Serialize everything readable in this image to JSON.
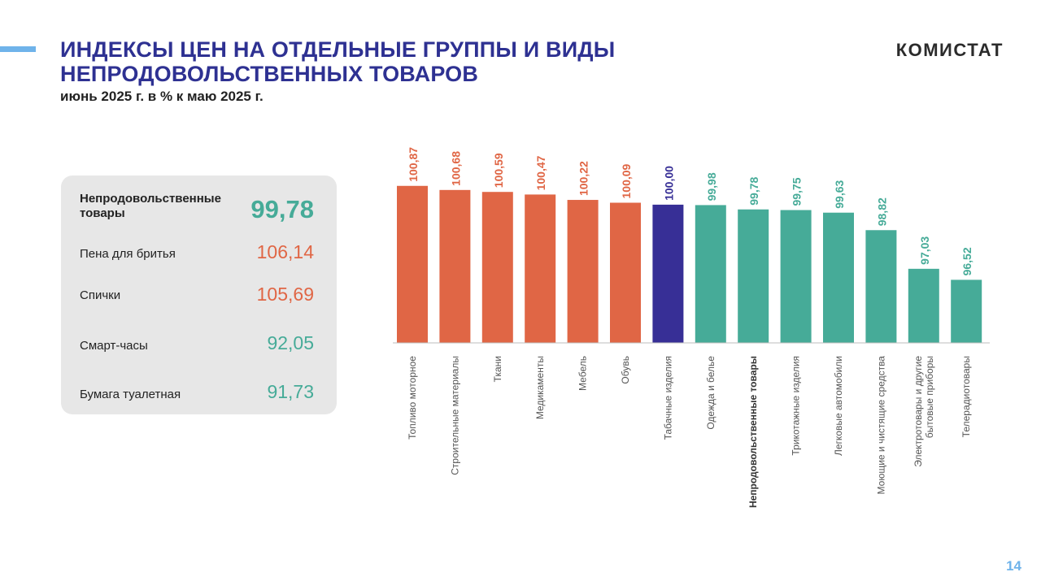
{
  "header": {
    "title_line1": "ИНДЕКСЫ ЦЕН НА ОТДЕЛЬНЫЕ  ГРУППЫ И ВИДЫ",
    "title_line2": "НЕПРОДОВОЛЬСТВЕННЫХ  ТОВАРОВ",
    "subtitle": "июнь 2025 г. в % к маю 2025 г.",
    "brand": "КОМИСТАТ"
  },
  "page_number": "14",
  "colors": {
    "title": "#2e3192",
    "increase": "#e06645",
    "neutral": "#372f96",
    "decrease": "#46ab98",
    "panel_bg": "#e7e7e7",
    "accent": "#6fb3ea"
  },
  "summary": [
    {
      "label": "Непродовольственные товары",
      "value": "99,78",
      "color": "#46ab98",
      "emphasis": true
    },
    {
      "label": "Пена для бритья",
      "value": "106,14",
      "color": "#e06645",
      "emphasis": false
    },
    {
      "label": "Спички",
      "value": "105,69",
      "color": "#e06645",
      "emphasis": false
    },
    {
      "label": "Смарт-часы",
      "value": "92,05",
      "color": "#46ab98",
      "emphasis": false
    },
    {
      "label": "Бумага туалетная",
      "value": "91,73",
      "color": "#46ab98",
      "emphasis": false
    }
  ],
  "chart_data": {
    "type": "bar",
    "categories": [
      "Топливо  моторное",
      "Строительные  материалы",
      "Ткани",
      "Медикаменты",
      "Мебель",
      "Обувь",
      "Табачные  изделия",
      "Одежда и белье",
      "Непродовольственные товары",
      "Трикотажные  изделия",
      "Легковые  автомобили",
      "Моющие и чистящие средства",
      "Электротовары  и другие бытовые приборы",
      "Телерадиотовары"
    ],
    "values": [
      100.87,
      100.68,
      100.59,
      100.47,
      100.22,
      100.09,
      100.0,
      99.98,
      99.78,
      99.75,
      99.63,
      98.82,
      97.03,
      96.52
    ],
    "value_labels": [
      "100,87",
      "100,68",
      "100,59",
      "100,47",
      "100,22",
      "100,09",
      "100,00",
      "99,98",
      "99,78",
      "99,75",
      "99,63",
      "98,82",
      "97,03",
      "96,52"
    ],
    "bar_colors": [
      "#e06645",
      "#e06645",
      "#e06645",
      "#e06645",
      "#e06645",
      "#e06645",
      "#372f96",
      "#46ab98",
      "#46ab98",
      "#46ab98",
      "#46ab98",
      "#46ab98",
      "#46ab98",
      "#46ab98"
    ],
    "bold_category": "Непродовольственные товары",
    "ylim": [
      93.6,
      101.2
    ],
    "grid": false,
    "title": "",
    "xlabel": "",
    "ylabel": ""
  }
}
